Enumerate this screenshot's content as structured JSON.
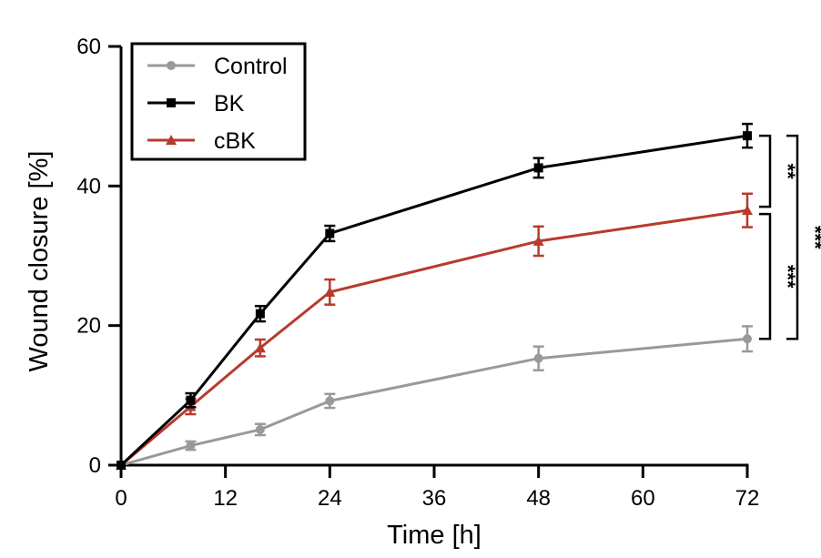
{
  "chart_data": {
    "type": "line",
    "title": "",
    "xlabel": "Time [h]",
    "ylabel": "Wound closure [%]",
    "xlim": [
      0,
      72
    ],
    "ylim": [
      0,
      60
    ],
    "xticks": [
      0,
      12,
      24,
      36,
      48,
      60,
      72
    ],
    "yticks": [
      0,
      20,
      40,
      60
    ],
    "grid": false,
    "legend_position": "top-left",
    "x": [
      0,
      8,
      16,
      24,
      48,
      72
    ],
    "series": [
      {
        "name": "Control",
        "color": "#999999",
        "marker": "circle",
        "values": [
          0,
          2.8,
          5.1,
          9.2,
          15.3,
          18.1
        ],
        "errors": [
          0,
          0.6,
          0.8,
          1.0,
          1.7,
          1.8
        ]
      },
      {
        "name": "BK",
        "color": "#000000",
        "marker": "square",
        "values": [
          0,
          9.3,
          21.7,
          33.2,
          42.6,
          47.2
        ],
        "errors": [
          0,
          1.0,
          1.1,
          1.1,
          1.4,
          1.7
        ]
      },
      {
        "name": "cBK",
        "color": "#b73a2e",
        "marker": "triangle",
        "values": [
          0,
          8.4,
          16.8,
          24.8,
          32.1,
          36.5
        ],
        "errors": [
          0,
          1.1,
          1.2,
          1.8,
          2.1,
          2.4
        ]
      }
    ],
    "significance": [
      {
        "label": "**",
        "from": "BK",
        "to": "cBK",
        "at_x": 72
      },
      {
        "label": "***",
        "from": "cBK",
        "to": "Control",
        "at_x": 72
      },
      {
        "label": "***",
        "from": "BK",
        "to": "Control",
        "at_x": 72
      }
    ]
  }
}
